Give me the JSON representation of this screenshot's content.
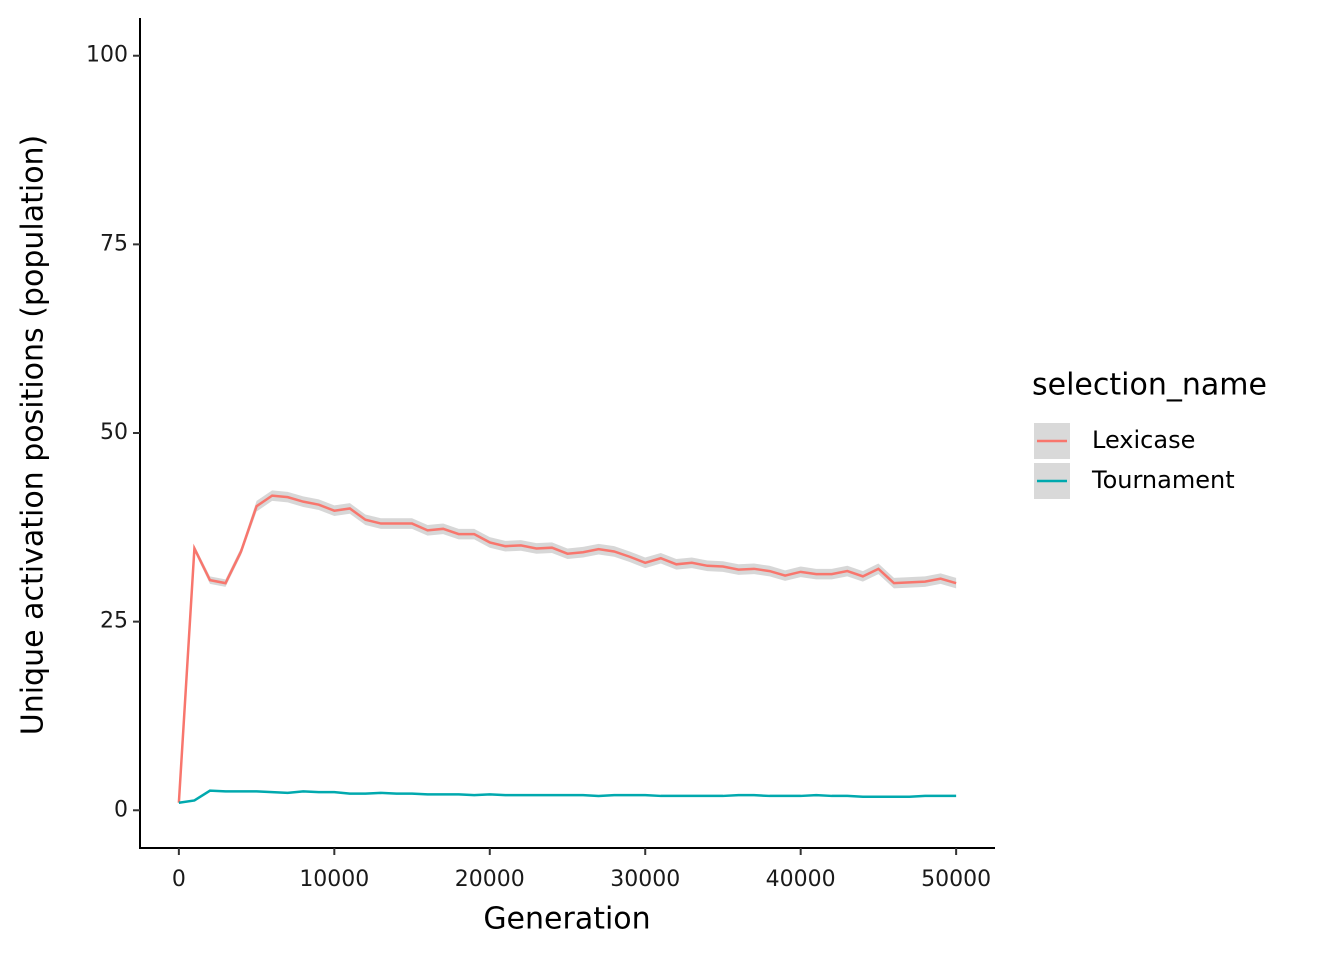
{
  "chart_data": {
    "type": "line",
    "xlabel": "Generation",
    "ylabel": "Unique activation positions (population)",
    "legend_title": "selection_name",
    "legend": "right",
    "grid": false,
    "x": [
      0,
      1000,
      2000,
      3000,
      4000,
      5000,
      6000,
      7000,
      8000,
      9000,
      10000,
      11000,
      12000,
      13000,
      14000,
      15000,
      16000,
      17000,
      18000,
      19000,
      20000,
      21000,
      22000,
      23000,
      24000,
      25000,
      26000,
      27000,
      28000,
      29000,
      30000,
      31000,
      32000,
      33000,
      34000,
      35000,
      36000,
      37000,
      38000,
      39000,
      40000,
      41000,
      42000,
      43000,
      44000,
      45000,
      46000,
      47000,
      48000,
      49000,
      50000
    ],
    "xlim": [
      -2500,
      52500
    ],
    "xticks": [
      0,
      10000,
      20000,
      30000,
      40000,
      50000
    ],
    "ylim": [
      -5,
      105
    ],
    "yticks": [
      0,
      25,
      50,
      75,
      100
    ],
    "series": [
      {
        "name": "Lexicase",
        "color": "#F8766D",
        "values": [
          1,
          34.7,
          30.5,
          30.1,
          34.3,
          40.3,
          41.7,
          41.5,
          40.9,
          40.5,
          39.7,
          40.0,
          38.5,
          38.0,
          38.0,
          38.0,
          37.1,
          37.3,
          36.6,
          36.6,
          35.5,
          35.0,
          35.1,
          34.7,
          34.8,
          34.0,
          34.2,
          34.6,
          34.3,
          33.6,
          32.8,
          33.4,
          32.6,
          32.8,
          32.4,
          32.3,
          31.9,
          32.0,
          31.7,
          31.1,
          31.6,
          31.3,
          31.3,
          31.7,
          31.0,
          32.0,
          30.1,
          30.2,
          30.3,
          30.7,
          30.1
        ],
        "lower": [
          0.9,
          34.3,
          30.0,
          29.6,
          33.8,
          39.6,
          41.0,
          40.8,
          40.2,
          39.8,
          39.0,
          39.3,
          37.8,
          37.3,
          37.3,
          37.3,
          36.4,
          36.6,
          35.9,
          35.9,
          34.8,
          34.3,
          34.4,
          34.0,
          34.1,
          33.3,
          33.5,
          33.9,
          33.6,
          32.9,
          32.1,
          32.7,
          31.9,
          32.1,
          31.7,
          31.6,
          31.2,
          31.3,
          31.0,
          30.4,
          30.9,
          30.6,
          30.6,
          31.0,
          30.3,
          31.3,
          29.4,
          29.5,
          29.6,
          30.0,
          29.4
        ],
        "upper": [
          1.1,
          35.1,
          31.0,
          30.6,
          34.8,
          41.0,
          42.4,
          42.2,
          41.6,
          41.2,
          40.4,
          40.7,
          39.2,
          38.7,
          38.7,
          38.7,
          37.8,
          38.0,
          37.3,
          37.3,
          36.2,
          35.7,
          35.8,
          35.4,
          35.5,
          34.7,
          34.9,
          35.3,
          35.0,
          34.3,
          33.5,
          34.1,
          33.3,
          33.5,
          33.1,
          33.0,
          32.6,
          32.7,
          32.4,
          31.8,
          32.3,
          32.0,
          32.0,
          32.4,
          31.7,
          32.7,
          30.8,
          30.9,
          31.0,
          31.4,
          30.8
        ]
      },
      {
        "name": "Tournament",
        "color": "#00A9AE",
        "values": [
          1.0,
          1.3,
          2.6,
          2.5,
          2.5,
          2.5,
          2.4,
          2.3,
          2.5,
          2.4,
          2.4,
          2.2,
          2.2,
          2.3,
          2.2,
          2.2,
          2.1,
          2.1,
          2.1,
          2.0,
          2.1,
          2.0,
          2.0,
          2.0,
          2.0,
          2.0,
          2.0,
          1.9,
          2.0,
          2.0,
          2.0,
          1.9,
          1.9,
          1.9,
          1.9,
          1.9,
          2.0,
          2.0,
          1.9,
          1.9,
          1.9,
          2.0,
          1.9,
          1.9,
          1.8,
          1.8,
          1.8,
          1.8,
          1.9,
          1.9,
          1.9
        ]
      }
    ]
  }
}
